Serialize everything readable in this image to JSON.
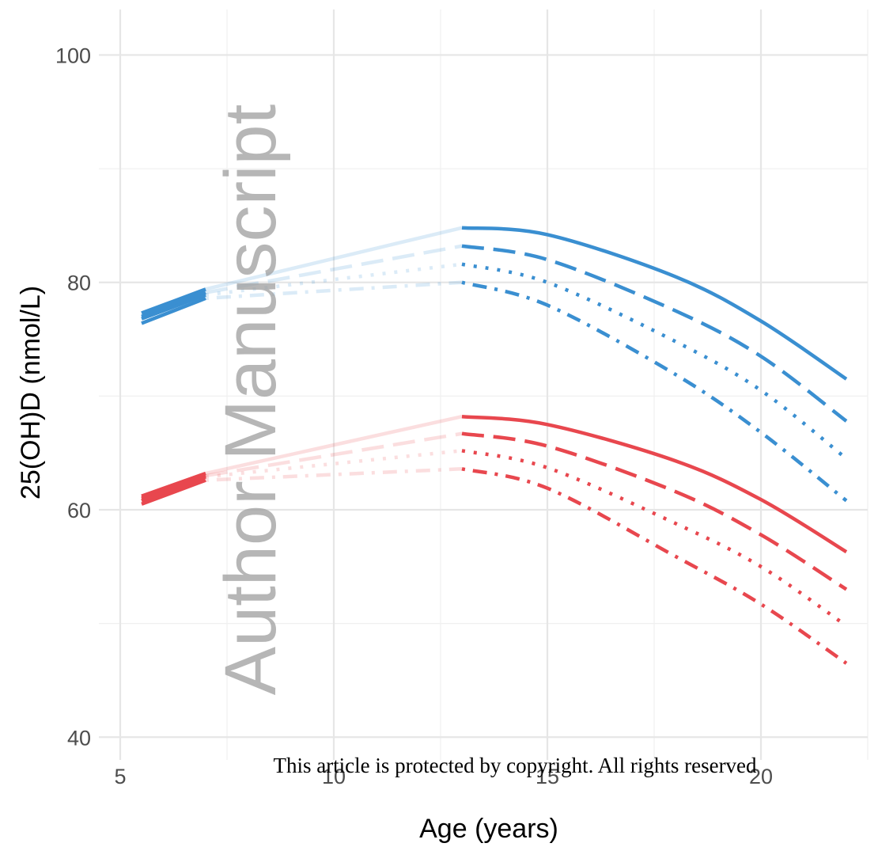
{
  "chart_data": {
    "type": "line",
    "xlabel": "Age (years)",
    "ylabel": "25(OH)D (nmol/L)",
    "xlim": [
      4.5,
      22.5
    ],
    "ylim": [
      38,
      104
    ],
    "x_ticks": [
      5,
      10,
      15,
      20
    ],
    "y_ticks": [
      40,
      60,
      80,
      100
    ],
    "x_minor_grid": [
      7.5,
      12.5,
      17.5,
      22.5
    ],
    "y_minor_grid": [
      50,
      70,
      90
    ],
    "grid": true,
    "legend": "none",
    "x_split": 13,
    "colors": {
      "blue": "#3a8fd1",
      "red": "#e8474e"
    },
    "series": [
      {
        "color": "blue",
        "dash": "solid",
        "points": [
          [
            5.5,
            77.3
          ],
          [
            7,
            79.4
          ],
          [
            13,
            84.8
          ],
          [
            15,
            84.2
          ],
          [
            18,
            80.5
          ],
          [
            20,
            76.6
          ],
          [
            22,
            71.5
          ]
        ]
      },
      {
        "color": "blue",
        "dash": "longdash",
        "points": [
          [
            5.5,
            77.0
          ],
          [
            7,
            79.1
          ],
          [
            13,
            83.2
          ],
          [
            15,
            82.0
          ],
          [
            18,
            77.5
          ],
          [
            20,
            73.5
          ],
          [
            22,
            67.8
          ]
        ]
      },
      {
        "color": "blue",
        "dash": "dotted",
        "points": [
          [
            5.5,
            76.8
          ],
          [
            7,
            78.9
          ],
          [
            13,
            81.6
          ],
          [
            15,
            80.0
          ],
          [
            18,
            74.8
          ],
          [
            20,
            70.5
          ],
          [
            22,
            64.5
          ]
        ]
      },
      {
        "color": "blue",
        "dash": "dotdash",
        "points": [
          [
            5.5,
            76.4
          ],
          [
            7,
            78.6
          ],
          [
            13,
            80.0
          ],
          [
            15,
            78.0
          ],
          [
            18,
            71.9
          ],
          [
            20,
            66.8
          ],
          [
            22,
            60.8
          ]
        ]
      },
      {
        "color": "red",
        "dash": "solid",
        "points": [
          [
            5.5,
            61.2
          ],
          [
            7,
            63.2
          ],
          [
            13,
            68.2
          ],
          [
            15,
            67.5
          ],
          [
            18,
            64.3
          ],
          [
            20,
            60.9
          ],
          [
            22,
            56.3
          ]
        ]
      },
      {
        "color": "red",
        "dash": "longdash",
        "points": [
          [
            5.5,
            61.0
          ],
          [
            7,
            63.0
          ],
          [
            13,
            66.7
          ],
          [
            15,
            65.6
          ],
          [
            18,
            61.6
          ],
          [
            20,
            57.8
          ],
          [
            22,
            53.0
          ]
        ]
      },
      {
        "color": "red",
        "dash": "dotted",
        "points": [
          [
            5.5,
            60.8
          ],
          [
            7,
            62.9
          ],
          [
            13,
            65.2
          ],
          [
            15,
            63.7
          ],
          [
            18,
            58.8
          ],
          [
            20,
            55.0
          ],
          [
            22,
            49.8
          ]
        ]
      },
      {
        "color": "red",
        "dash": "dotdash",
        "points": [
          [
            5.5,
            60.5
          ],
          [
            7,
            62.6
          ],
          [
            13,
            63.6
          ],
          [
            15,
            61.9
          ],
          [
            18,
            55.9
          ],
          [
            20,
            51.7
          ],
          [
            22,
            46.5
          ]
        ]
      }
    ]
  },
  "watermark": "Author Manuscript",
  "footer_note": "This article is protected by copyright. All rights reserved"
}
